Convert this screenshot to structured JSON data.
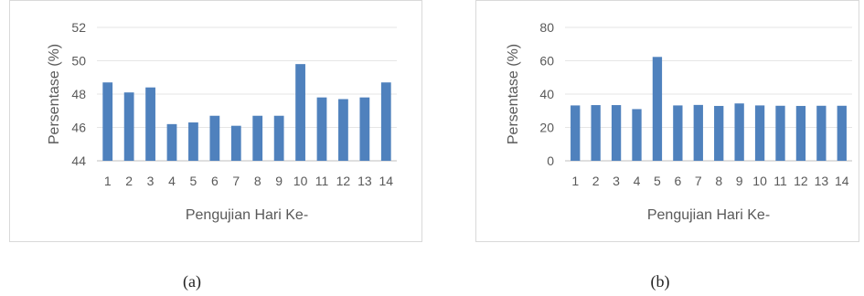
{
  "chart_data": [
    {
      "type": "bar",
      "title": "",
      "xlabel": "Pengujian Hari Ke-",
      "ylabel": "Persentase (%)",
      "categories": [
        "1",
        "2",
        "3",
        "4",
        "5",
        "6",
        "7",
        "8",
        "9",
        "10",
        "11",
        "12",
        "13",
        "14"
      ],
      "values": [
        48.7,
        48.1,
        48.4,
        46.2,
        46.3,
        46.7,
        46.1,
        46.7,
        46.7,
        49.8,
        47.8,
        47.7,
        47.8,
        48.7
      ],
      "ylim": [
        44,
        52
      ],
      "yticks": [
        "44",
        "46",
        "48",
        "50",
        "52"
      ],
      "grid": true,
      "color": "#4f81bd",
      "caption": "(a)"
    },
    {
      "type": "bar",
      "title": "",
      "xlabel": "Pengujian Hari Ke-",
      "ylabel": "Persentase (%)",
      "categories": [
        "1",
        "2",
        "3",
        "4",
        "5",
        "6",
        "7",
        "8",
        "9",
        "10",
        "11",
        "12",
        "13",
        "14"
      ],
      "values": [
        33.2,
        33.4,
        33.4,
        31.0,
        62.3,
        33.2,
        33.5,
        32.9,
        34.4,
        33.2,
        33.0,
        32.9,
        33.0,
        33.0
      ],
      "ylim": [
        0,
        80
      ],
      "yticks": [
        "0",
        "20",
        "40",
        "60",
        "80"
      ],
      "grid": true,
      "color": "#4f81bd",
      "caption": "(b)"
    }
  ]
}
